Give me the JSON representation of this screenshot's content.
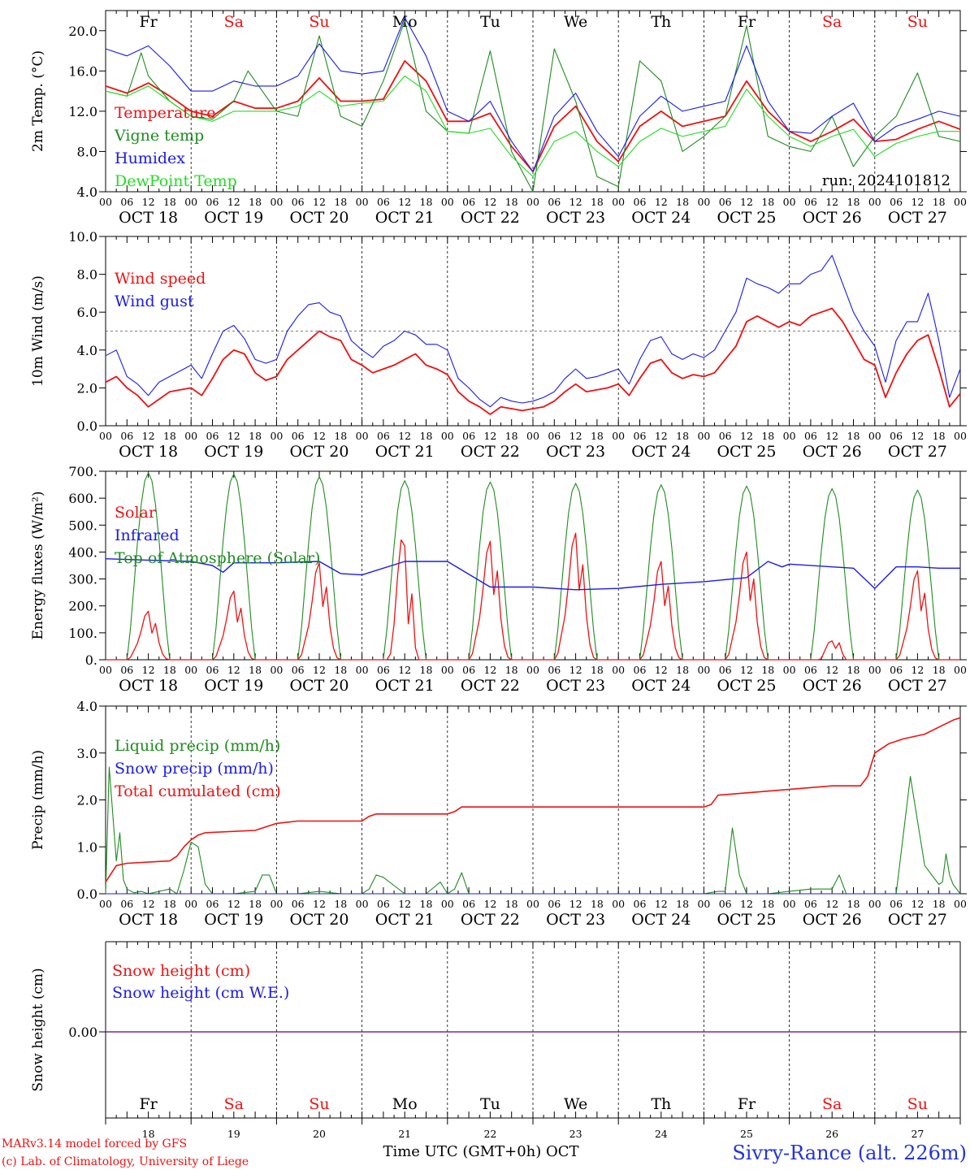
{
  "days": [
    "Fr",
    "Sa",
    "Su",
    "Mo",
    "Tu",
    "We",
    "Th",
    "Fr",
    "Sa",
    "Su"
  ],
  "day_numbers": [
    "18",
    "19",
    "20",
    "21",
    "22",
    "23",
    "24",
    "25",
    "26",
    "27"
  ],
  "date_labels": [
    "OCT 18",
    "OCT 19",
    "OCT 20",
    "OCT 21",
    "OCT 22",
    "OCT 23",
    "OCT 24",
    "OCT 25",
    "OCT 26",
    "OCT 27"
  ],
  "hour_ticks": [
    "00",
    "06",
    "12",
    "18"
  ],
  "hour_end": "00",
  "colors": {
    "red": "#ee1111",
    "green": "#1e8c1e",
    "blue": "#1a1aee",
    "lightgreen": "#22dd22",
    "weekend": "#ee1111",
    "weekday": "#000000",
    "purple": "#7a2a9a",
    "title": "#2233dd"
  },
  "run_label": "run: 2024101812",
  "footer": {
    "model_line1": "MARv3.14 model forced by GFS",
    "model_line2": "(c) Lab. of Climatology, University of Liege",
    "axis_title": "Time UTC (GMT+0h) OCT",
    "station": "Sivry-Rance (alt. 226m)"
  },
  "chart_data": [
    {
      "type": "line",
      "ylabel": "2m Temp. (°C)",
      "ylim": [
        4,
        22
      ],
      "yticks": [
        "4.0",
        "8.0",
        "12.0",
        "16.0",
        "20.0"
      ],
      "x_unit": "hours since Oct 18 00 UTC",
      "series": [
        {
          "name": "Temperature",
          "color": "red",
          "x": [
            0,
            6,
            12,
            18,
            24,
            30,
            36,
            42,
            48,
            54,
            60,
            66,
            72,
            78,
            84,
            90,
            96,
            102,
            108,
            114,
            120,
            126,
            132,
            138,
            144,
            150,
            156,
            162,
            168,
            174,
            180,
            186,
            192,
            198,
            204,
            210,
            216,
            222,
            228,
            234,
            240
          ],
          "y": [
            14.5,
            13.8,
            14.8,
            13.5,
            12.0,
            11.5,
            13.0,
            12.3,
            12.3,
            13.0,
            15.3,
            13.0,
            13.0,
            13.2,
            17.0,
            15.0,
            11.0,
            11.0,
            11.8,
            8.5,
            6.0,
            10.5,
            12.5,
            9.0,
            7.0,
            10.5,
            12.0,
            10.5,
            11.0,
            11.5,
            15.0,
            12.0,
            10.0,
            9.0,
            10.0,
            11.2,
            9.0,
            9.2,
            10.2,
            11.0,
            10.2
          ]
        },
        {
          "name": "Vigne temp",
          "color": "green",
          "x": [
            0,
            6,
            10,
            12,
            18,
            24,
            30,
            36,
            40,
            48,
            54,
            60,
            66,
            72,
            78,
            84,
            90,
            96,
            102,
            108,
            114,
            120,
            126,
            132,
            138,
            144,
            150,
            156,
            162,
            168,
            174,
            180,
            186,
            192,
            198,
            204,
            210,
            216,
            222,
            228,
            234,
            240
          ],
          "y": [
            14.0,
            13.5,
            17.8,
            15.5,
            13.0,
            11.5,
            11.2,
            13.0,
            16.0,
            12.0,
            11.5,
            19.5,
            11.5,
            10.5,
            15.0,
            21.0,
            12.0,
            10.0,
            9.8,
            18.0,
            8.0,
            4.0,
            18.2,
            13.0,
            5.5,
            4.5,
            17.0,
            15.0,
            8.0,
            9.5,
            11.5,
            20.5,
            9.5,
            8.5,
            8.0,
            11.5,
            6.5,
            9.5,
            11.5,
            15.8,
            9.5,
            9.0
          ]
        },
        {
          "name": "Humidex",
          "color": "blue",
          "x": [
            0,
            6,
            12,
            18,
            24,
            30,
            36,
            42,
            48,
            54,
            60,
            66,
            72,
            78,
            84,
            90,
            96,
            102,
            108,
            114,
            120,
            126,
            132,
            138,
            144,
            150,
            156,
            162,
            168,
            174,
            180,
            186,
            192,
            198,
            204,
            210,
            216,
            222,
            228,
            234,
            240
          ],
          "y": [
            18.2,
            17.5,
            18.5,
            16.5,
            14.0,
            14.0,
            15.0,
            14.5,
            14.5,
            15.5,
            18.7,
            16.0,
            15.7,
            16.0,
            21.3,
            17.5,
            12.0,
            11.0,
            13.0,
            9.0,
            6.0,
            11.5,
            13.8,
            10.0,
            7.5,
            11.5,
            13.5,
            12.0,
            12.5,
            13.0,
            18.5,
            13.0,
            10.0,
            9.8,
            11.5,
            12.8,
            9.0,
            10.5,
            11.2,
            12.0,
            11.5
          ]
        },
        {
          "name": "DewPoint Temp",
          "color": "lightgreen",
          "x": [
            0,
            6,
            12,
            18,
            24,
            30,
            36,
            42,
            48,
            54,
            60,
            66,
            72,
            78,
            84,
            90,
            96,
            102,
            108,
            114,
            120,
            126,
            132,
            138,
            144,
            150,
            156,
            162,
            168,
            174,
            180,
            186,
            192,
            198,
            204,
            210,
            216,
            222,
            228,
            234,
            240
          ],
          "y": [
            14.0,
            13.5,
            14.5,
            13.0,
            11.5,
            11.0,
            12.0,
            12.0,
            12.0,
            12.5,
            14.0,
            12.5,
            12.8,
            13.0,
            15.5,
            14.0,
            10.0,
            9.8,
            10.3,
            7.5,
            5.5,
            9.0,
            10.0,
            8.0,
            6.5,
            9.0,
            10.3,
            9.5,
            10.0,
            10.5,
            14.2,
            11.5,
            9.5,
            8.5,
            9.5,
            10.2,
            7.5,
            8.8,
            9.5,
            10.0,
            10.0
          ]
        }
      ]
    },
    {
      "type": "line",
      "ylabel": "10m Wind (m/s)",
      "ylim": [
        0,
        10
      ],
      "yticks": [
        "0.0",
        "2.0",
        "4.0",
        "6.0",
        "8.0",
        "10.0"
      ],
      "reference_line": 5.0,
      "series": [
        {
          "name": "Wind speed",
          "color": "red",
          "x": [
            0,
            3,
            6,
            9,
            12,
            15,
            18,
            24,
            27,
            30,
            33,
            36,
            39,
            42,
            45,
            48,
            51,
            54,
            57,
            60,
            63,
            66,
            69,
            72,
            75,
            78,
            81,
            84,
            87,
            90,
            93,
            96,
            99,
            102,
            105,
            108,
            111,
            114,
            117,
            120,
            123,
            126,
            129,
            132,
            135,
            138,
            141,
            144,
            147,
            150,
            153,
            156,
            159,
            162,
            165,
            168,
            171,
            174,
            177,
            180,
            183,
            186,
            189,
            192,
            195,
            198,
            201,
            204,
            207,
            210,
            213,
            216,
            219,
            222,
            225,
            228,
            231,
            234,
            237,
            240
          ],
          "y": [
            2.3,
            2.6,
            2.0,
            1.6,
            1.0,
            1.4,
            1.8,
            2.0,
            1.6,
            2.5,
            3.5,
            4.0,
            3.8,
            2.8,
            2.4,
            2.6,
            3.5,
            4.0,
            4.5,
            5.0,
            4.7,
            4.5,
            3.5,
            3.2,
            2.8,
            3.0,
            3.2,
            3.5,
            3.8,
            3.2,
            3.0,
            2.7,
            1.8,
            1.3,
            1.0,
            0.6,
            1.0,
            0.9,
            0.8,
            0.9,
            1.0,
            1.3,
            1.8,
            2.2,
            1.8,
            1.9,
            2.0,
            2.2,
            1.6,
            2.5,
            3.3,
            3.5,
            2.8,
            2.5,
            2.7,
            2.6,
            2.8,
            3.5,
            4.2,
            5.5,
            5.8,
            5.5,
            5.2,
            5.5,
            5.3,
            5.8,
            6.0,
            6.2,
            5.5,
            4.5,
            3.5,
            3.2,
            1.5,
            2.8,
            3.8,
            4.5,
            4.8,
            3.0,
            1.0,
            1.7
          ]
        },
        {
          "name": "Wind gust",
          "color": "blue",
          "x": [
            0,
            3,
            6,
            9,
            12,
            15,
            18,
            24,
            27,
            30,
            33,
            36,
            39,
            42,
            45,
            48,
            51,
            54,
            57,
            60,
            63,
            66,
            69,
            72,
            75,
            78,
            81,
            84,
            87,
            90,
            93,
            96,
            99,
            102,
            105,
            108,
            111,
            114,
            117,
            120,
            123,
            126,
            129,
            132,
            135,
            138,
            141,
            144,
            147,
            150,
            153,
            156,
            159,
            162,
            165,
            168,
            171,
            174,
            177,
            180,
            183,
            186,
            189,
            192,
            195,
            198,
            201,
            204,
            207,
            210,
            213,
            216,
            219,
            222,
            225,
            228,
            231,
            234,
            237,
            240
          ],
          "y": [
            3.7,
            4.0,
            2.6,
            2.2,
            1.6,
            2.3,
            2.6,
            3.2,
            2.5,
            3.8,
            5.0,
            5.3,
            4.6,
            3.5,
            3.3,
            3.5,
            5.0,
            5.8,
            6.4,
            6.5,
            6.0,
            5.8,
            4.5,
            4.0,
            3.6,
            4.2,
            4.5,
            5.0,
            4.8,
            4.3,
            4.3,
            4.0,
            2.5,
            2.0,
            1.4,
            1.0,
            1.5,
            1.3,
            1.2,
            1.3,
            1.5,
            1.8,
            2.5,
            3.0,
            2.5,
            2.6,
            2.8,
            3.0,
            2.2,
            3.5,
            4.5,
            4.7,
            3.8,
            3.5,
            3.8,
            3.6,
            4.0,
            5.0,
            6.0,
            7.8,
            7.5,
            7.3,
            7.0,
            7.5,
            7.5,
            8.0,
            8.2,
            9.0,
            7.5,
            6.0,
            5.0,
            4.2,
            2.3,
            4.5,
            5.5,
            5.5,
            7.0,
            4.5,
            1.5,
            3.0
          ]
        }
      ]
    },
    {
      "type": "line",
      "ylabel": "Energy fluxes (W/m²)",
      "ylim": [
        0,
        700
      ],
      "yticks": [
        "0.",
        "100.",
        "200.",
        "300.",
        "400.",
        "500.",
        "600.",
        "700."
      ],
      "series": [
        {
          "name": "Solar",
          "color": "red",
          "peaks": [
            180,
            255,
            360,
            445,
            440,
            470,
            365,
            400,
            70,
            330
          ]
        },
        {
          "name": "Infrared",
          "color": "blue",
          "x": [
            0,
            12,
            24,
            30,
            33,
            36,
            42,
            48,
            60,
            66,
            72,
            84,
            90,
            96,
            108,
            120,
            132,
            144,
            156,
            168,
            180,
            186,
            190,
            192,
            204,
            210,
            216,
            222,
            228,
            234,
            240
          ],
          "y": [
            375,
            370,
            365,
            350,
            325,
            360,
            360,
            360,
            365,
            320,
            315,
            365,
            365,
            365,
            270,
            270,
            260,
            265,
            280,
            290,
            305,
            365,
            345,
            355,
            345,
            340,
            265,
            345,
            345,
            340,
            340
          ]
        },
        {
          "name": "Top of Atmosphere (Solar)",
          "color": "green",
          "peaks": [
            695,
            690,
            680,
            665,
            660,
            655,
            650,
            645,
            635,
            630
          ]
        }
      ]
    },
    {
      "type": "line",
      "ylabel": "Precip (mm/h)",
      "ylim": [
        0,
        4
      ],
      "yticks": [
        "0.0",
        "1.0",
        "2.0",
        "3.0",
        "4.0"
      ],
      "series": [
        {
          "name": "Liquid precip (mm/h)",
          "color": "green",
          "x": [
            0,
            1,
            3,
            4,
            5,
            6,
            8,
            10,
            12,
            18,
            20,
            22,
            24,
            26,
            28,
            30,
            36,
            42,
            44,
            46,
            48,
            54,
            60,
            66,
            72,
            74,
            76,
            78,
            84,
            90,
            94,
            96,
            98,
            100,
            102,
            110,
            114,
            120,
            168,
            172,
            174,
            176,
            178,
            180,
            186,
            192,
            198,
            204,
            206,
            208,
            210,
            216,
            218,
            222,
            226,
            230,
            234,
            235,
            236,
            237,
            238,
            240
          ],
          "y": [
            0.0,
            2.7,
            0.7,
            1.3,
            0.3,
            0.1,
            0.02,
            0.05,
            0.0,
            0.1,
            0.0,
            0.5,
            1.1,
            1.0,
            0.2,
            0.0,
            0.0,
            0.05,
            0.4,
            0.4,
            0.0,
            0.0,
            0.05,
            0.0,
            0.0,
            0.1,
            0.4,
            0.35,
            0.0,
            0.0,
            0.25,
            0.0,
            0.1,
            0.45,
            0.0,
            0.0,
            0.0,
            0.0,
            0.0,
            0.05,
            0.05,
            1.4,
            0.4,
            0.0,
            0.0,
            0.05,
            0.1,
            0.1,
            0.4,
            0.0,
            0.0,
            0.0,
            0.0,
            0.0,
            2.5,
            0.6,
            0.2,
            0.25,
            0.85,
            0.4,
            0.2,
            0.0
          ]
        },
        {
          "name": "Snow precip (mm/h)",
          "color": "blue",
          "x": [
            0,
            240
          ],
          "y": [
            0,
            0
          ]
        },
        {
          "name": "Total cumulated (cm)",
          "color": "red",
          "x": [
            0,
            3,
            6,
            18,
            20,
            22,
            24,
            26,
            28,
            42,
            48,
            54,
            72,
            74,
            76,
            96,
            98,
            100,
            102,
            168,
            170,
            172,
            180,
            204,
            212,
            214,
            216,
            220,
            224,
            230,
            238,
            240
          ],
          "y": [
            0.25,
            0.6,
            0.65,
            0.7,
            0.8,
            1.0,
            1.15,
            1.25,
            1.3,
            1.35,
            1.5,
            1.55,
            1.55,
            1.65,
            1.7,
            1.7,
            1.75,
            1.85,
            1.85,
            1.85,
            1.9,
            2.1,
            2.15,
            2.3,
            2.3,
            2.5,
            3.0,
            3.2,
            3.3,
            3.4,
            3.7,
            3.75
          ]
        }
      ]
    },
    {
      "type": "line",
      "ylabel": "Snow height (cm)",
      "ylim": [
        -1,
        1
      ],
      "yticks": [
        "0.00"
      ],
      "series": [
        {
          "name": "Snow height (cm)",
          "color": "red",
          "x": [
            0,
            240
          ],
          "y": [
            0,
            0
          ]
        },
        {
          "name": "Snow height (cm W.E.)",
          "color": "blue",
          "x": [
            0,
            240
          ],
          "y": [
            0,
            0
          ]
        }
      ]
    }
  ]
}
